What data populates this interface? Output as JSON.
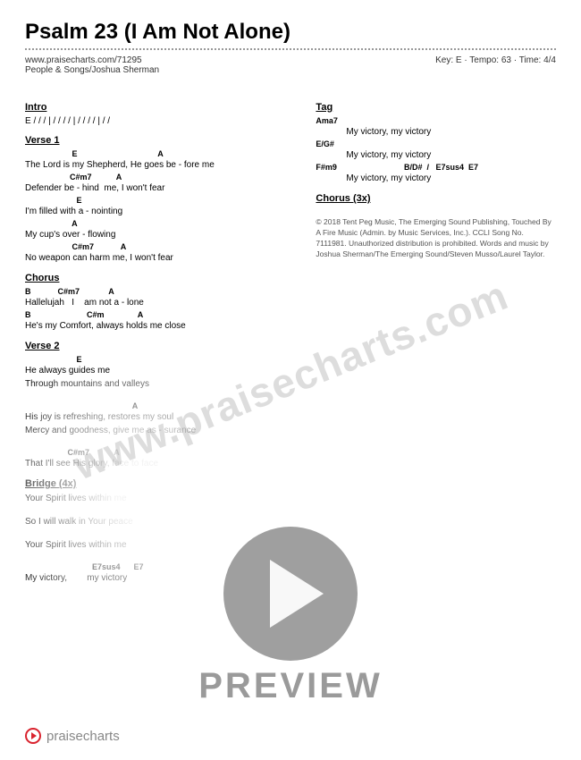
{
  "title": "Psalm 23 (I Am Not Alone)",
  "url": "www.praisecharts.com/71295",
  "artist": "People & Songs/Joshua Sherman",
  "meta": "Key: E · Tempo: 63 · Time: 4/4",
  "intro": {
    "head": "Intro",
    "line": "E  /  /  /  |   /  /  /  /  |   /  /  /  /  |   /  /"
  },
  "verse1": {
    "head": "Verse 1",
    "lines": [
      {
        "chords": "                     E                                    A",
        "lyric": "The Lord is my Shepherd, He goes be - fore me"
      },
      {
        "chords": "                    C#m7           A",
        "lyric": "Defender be - hind  me, I won't fear"
      },
      {
        "chords": "                       E",
        "lyric": "I'm filled with a - nointing"
      },
      {
        "chords": "                     A",
        "lyric": "My cup's over - flowing"
      },
      {
        "chords": "                     C#m7            A",
        "lyric": "No weapon can harm me, I won't fear"
      }
    ]
  },
  "chorus": {
    "head": "Chorus",
    "lines": [
      {
        "chords": "B            C#m7             A",
        "lyric": "Hallelujah   I    am not a - lone"
      },
      {
        "chords": "B                         C#m               A",
        "lyric": "He's my Comfort, always holds me close"
      }
    ]
  },
  "verse2": {
    "head": "Verse 2",
    "lines": [
      {
        "chords": "                       E",
        "lyric": "He always guides me"
      },
      {
        "chords": "",
        "lyric": "Through mountains and valleys"
      },
      {
        "chords": "                                                A",
        "lyric": "His joy is refreshing, restores my soul"
      },
      {
        "chords": "",
        "lyric": "Mercy and goodness, give me as - surance"
      },
      {
        "chords": "                   C#m7           A",
        "lyric": "That I'll see His glory, face to face"
      }
    ]
  },
  "bridge": {
    "head": "Bridge (4x)",
    "lines": [
      {
        "chords": "",
        "lyric": "Your Spirit lives within me"
      },
      {
        "chords": "",
        "lyric": "So I will walk in Your peace"
      },
      {
        "chords": "",
        "lyric": "Your Spirit lives within me"
      },
      {
        "chords": "                              E7sus4      E7",
        "lyric": "My victory,        my victory"
      }
    ]
  },
  "tag": {
    "head": "Tag",
    "lines": [
      {
        "chords": "Ama7",
        "lyric": "My victory, my victory"
      },
      {
        "chords": "E/G#",
        "lyric": "My victory, my victory"
      },
      {
        "chords": "F#m9                              B/D#  /   E7sus4  E7",
        "lyric": "My victory, my victory"
      }
    ]
  },
  "chorus3x": "Chorus (3x)",
  "copyright": "© 2018 Tent Peg Music, The Emerging Sound Publishing, Touched By A Fire Music (Admin. by Music Services, Inc.). CCLI Song No. 7111981. Unauthorized distribution is prohibited. Words and music by Joshua Sherman/The Emerging Sound/Steven Musso/Laurel Taylor.",
  "watermark": "www.praisecharts.com",
  "preview": "PREVIEW",
  "footer_logo": "praisecharts"
}
